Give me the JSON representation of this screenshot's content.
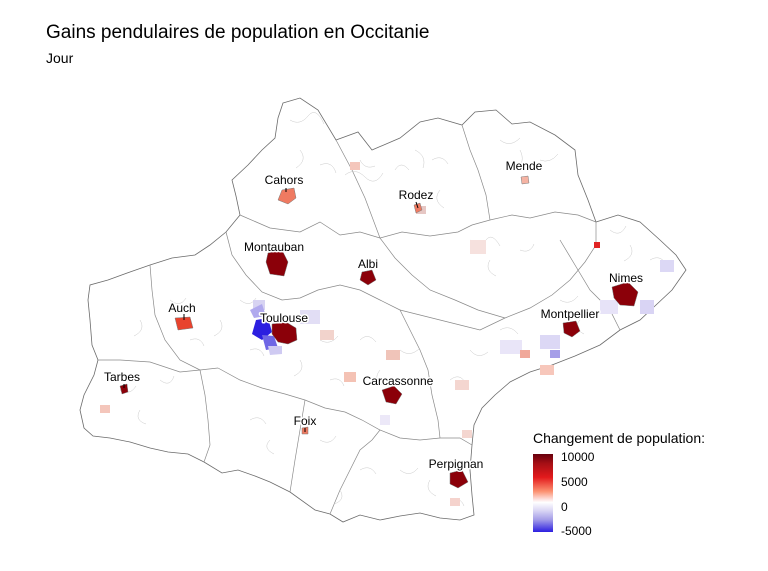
{
  "title": "Gains pendulaires de population en Occitanie",
  "subtitle": "Jour",
  "legend": {
    "title": "Changement de population:",
    "ticks": [
      "10000",
      "5000",
      "0",
      "-5000"
    ],
    "colors": {
      "max": "#67000d",
      "high": "#e31a1c",
      "mid": "#ffffff",
      "low": "#2c1fe0"
    }
  },
  "cities": [
    {
      "name": "Cahors",
      "value": 3000
    },
    {
      "name": "Rodez",
      "value": 2500
    },
    {
      "name": "Mende",
      "value": 1200
    },
    {
      "name": "Montauban",
      "value": 9000
    },
    {
      "name": "Albi",
      "value": 9000
    },
    {
      "name": "Nimes",
      "value": 10000
    },
    {
      "name": "Auch",
      "value": 4000
    },
    {
      "name": "Toulouse",
      "value": 10000
    },
    {
      "name": "Montpellier",
      "value": 10000
    },
    {
      "name": "Tarbes",
      "value": 9000
    },
    {
      "name": "Carcassonne",
      "value": 10000
    },
    {
      "name": "Foix",
      "value": 2000
    },
    {
      "name": "Perpignan",
      "value": 10000
    }
  ]
}
